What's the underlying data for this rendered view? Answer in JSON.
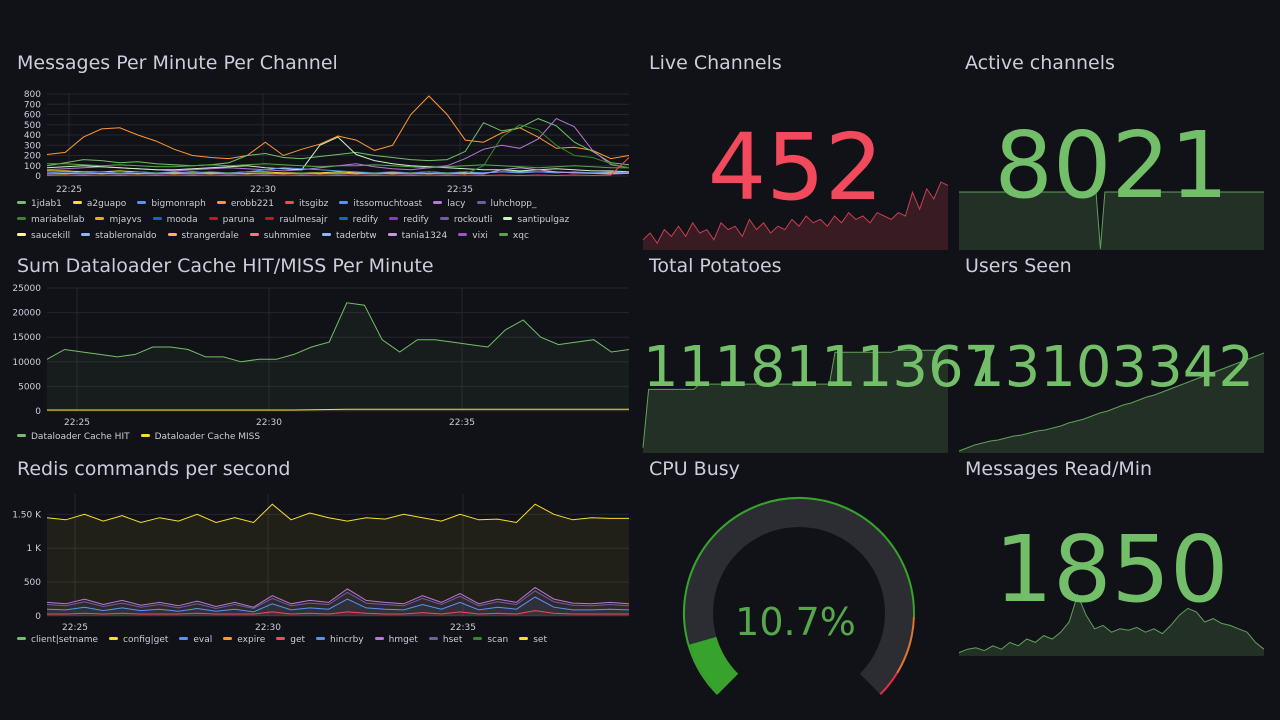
{
  "colors": {
    "background": "#111217",
    "grid": "#24262c",
    "text": "#ccccdc",
    "stat_green": "#73bf69",
    "stat_red": "#f2495c",
    "gauge_track": "#2b2d33"
  },
  "messages_panel": {
    "title": "Messages Per Minute Per Channel",
    "legend": [
      {
        "name": "1jdab1",
        "color": "#73bf69"
      },
      {
        "name": "a2guapo",
        "color": "#fade2a"
      },
      {
        "name": "bigmonraph",
        "color": "#5794f2"
      },
      {
        "name": "erobb221",
        "color": "#ff9830"
      },
      {
        "name": "itsgibz",
        "color": "#f2495c"
      },
      {
        "name": "itssomuchtoast",
        "color": "#5794f2"
      },
      {
        "name": "lacy",
        "color": "#b877d9"
      },
      {
        "name": "luhchopp_",
        "color": "#705da0"
      },
      {
        "name": "mariabellab",
        "color": "#37872d"
      },
      {
        "name": "mjayvs",
        "color": "#e0b400"
      },
      {
        "name": "mooda",
        "color": "#1f60c4"
      },
      {
        "name": "paruna",
        "color": "#c4162a"
      },
      {
        "name": "raulmesajr",
        "color": "#c4162a"
      },
      {
        "name": "redify",
        "color": "#1f60c4"
      },
      {
        "name": "redify",
        "color": "#8f3bb8"
      },
      {
        "name": "rockoutli",
        "color": "#705da0"
      },
      {
        "name": "santipulgaz",
        "color": "#c8f2c2"
      },
      {
        "name": "saucekill",
        "color": "#fff899"
      },
      {
        "name": "stableronaldo",
        "color": "#8ab8ff"
      },
      {
        "name": "strangerdale",
        "color": "#ffb357"
      },
      {
        "name": "suhmmiee",
        "color": "#ff7383"
      },
      {
        "name": "taderbtw",
        "color": "#8ab8ff"
      },
      {
        "name": "tania1324",
        "color": "#ca95e5"
      },
      {
        "name": "vixi",
        "color": "#a352cc"
      },
      {
        "name": "xqc",
        "color": "#56a64b"
      }
    ],
    "chart_data": {
      "type": "line",
      "yticks": [
        "800",
        "700",
        "600",
        "500",
        "400",
        "300",
        "200",
        "100",
        "0"
      ],
      "xticks": [
        "22:25",
        "22:30",
        "22:35"
      ],
      "ylim": [
        0,
        800
      ],
      "series": [
        {
          "name": "erobb221",
          "color": "#ff9830",
          "values": [
            210,
            230,
            380,
            460,
            470,
            400,
            340,
            260,
            200,
            180,
            170,
            200,
            330,
            200,
            260,
            310,
            390,
            350,
            250,
            300,
            600,
            780,
            600,
            350,
            330,
            420,
            470,
            380,
            270,
            280,
            250,
            170,
            200
          ]
        },
        {
          "name": "1jdab1",
          "color": "#73bf69",
          "values": [
            100,
            130,
            160,
            150,
            130,
            140,
            120,
            110,
            100,
            110,
            130,
            200,
            220,
            180,
            170,
            190,
            210,
            230,
            200,
            180,
            160,
            150,
            160,
            240,
            520,
            440,
            470,
            560,
            490,
            330,
            240,
            130,
            110
          ]
        },
        {
          "name": "lacy",
          "color": "#b877d9",
          "values": [
            60,
            70,
            80,
            90,
            80,
            70,
            60,
            50,
            60,
            70,
            80,
            70,
            60,
            50,
            60,
            80,
            100,
            120,
            90,
            70,
            60,
            80,
            100,
            170,
            260,
            300,
            270,
            360,
            560,
            480,
            250,
            110,
            80
          ]
        },
        {
          "name": "santipulgaz",
          "color": "#c8f2c2",
          "values": [
            80,
            90,
            100,
            90,
            80,
            70,
            60,
            60,
            70,
            80,
            90,
            100,
            80,
            70,
            60,
            300,
            380,
            210,
            150,
            120,
            100,
            90,
            80,
            70,
            60,
            60,
            50,
            60,
            70,
            60,
            50,
            50,
            40
          ]
        },
        {
          "name": "xqc",
          "color": "#56a64b",
          "values": [
            120,
            120,
            110,
            100,
            110,
            100,
            90,
            90,
            100,
            110,
            100,
            110,
            120,
            110,
            100,
            90,
            100,
            100,
            110,
            100,
            90,
            80,
            90,
            100,
            110,
            100,
            90,
            80,
            90,
            100,
            90,
            80,
            80
          ]
        },
        {
          "name": "a2guapo",
          "color": "#fade2a",
          "values": [
            50,
            50,
            40,
            40,
            50,
            40,
            30,
            30,
            40,
            30,
            30,
            40,
            40,
            30,
            30,
            30,
            40,
            30,
            30,
            30,
            30,
            40,
            30,
            30,
            30,
            40,
            40,
            40,
            40,
            30,
            30,
            30,
            30
          ]
        },
        {
          "name": "bigmonraph",
          "color": "#5794f2",
          "values": [
            30,
            40,
            30,
            40,
            30,
            40,
            30,
            40,
            30,
            40,
            30,
            40,
            60,
            80,
            70,
            60,
            50,
            40,
            30,
            40,
            30,
            40,
            30,
            40,
            30,
            40,
            30,
            40,
            30,
            40,
            30,
            40,
            30
          ]
        },
        {
          "name": "mariabellab",
          "color": "#37872d",
          "values": [
            20,
            20,
            30,
            20,
            30,
            20,
            30,
            20,
            30,
            20,
            30,
            20,
            30,
            20,
            30,
            20,
            30,
            20,
            30,
            20,
            30,
            20,
            30,
            20,
            100,
            380,
            500,
            450,
            300,
            200,
            180,
            120,
            80
          ]
        },
        {
          "name": "tania1324",
          "color": "#ca95e5",
          "values": [
            20,
            25,
            20,
            25,
            20,
            25,
            20,
            25,
            20,
            25,
            20,
            25,
            20,
            25,
            20,
            25,
            20,
            25,
            20,
            25,
            20,
            25,
            20,
            25,
            20,
            60,
            80,
            60,
            40,
            30,
            25,
            20,
            25
          ]
        },
        {
          "name": "itsgibz",
          "color": "#f2495c",
          "values": [
            5,
            10,
            5,
            10,
            5,
            10,
            5,
            10,
            5,
            10,
            5,
            10,
            5,
            10,
            5,
            10,
            5,
            10,
            5,
            10,
            5,
            10,
            5,
            10,
            5,
            10,
            5,
            10,
            5,
            10,
            5,
            10,
            180
          ]
        }
      ]
    }
  },
  "dataloader_panel": {
    "title": "Sum Dataloader Cache HIT/MISS Per Minute",
    "legend": [
      {
        "name": "Dataloader Cache HIT",
        "color": "#73bf69"
      },
      {
        "name": "Dataloader Cache MISS",
        "color": "#fade2a"
      }
    ],
    "chart_data": {
      "type": "area",
      "yticks": [
        "25000",
        "20000",
        "15000",
        "10000",
        "5000",
        "0"
      ],
      "xticks": [
        "22:25",
        "22:30",
        "22:35"
      ],
      "ylim": [
        0,
        25000
      ],
      "series": [
        {
          "name": "Dataloader Cache HIT",
          "color": "#73bf69",
          "values": [
            10500,
            12500,
            12000,
            11500,
            11000,
            11500,
            13000,
            13000,
            12500,
            11000,
            11000,
            10000,
            10500,
            10500,
            11500,
            13000,
            14000,
            22000,
            21500,
            14500,
            12000,
            14500,
            14500,
            14000,
            13500,
            13000,
            16500,
            18500,
            15000,
            13500,
            14000,
            14500,
            12000,
            12500
          ]
        },
        {
          "name": "Dataloader Cache MISS",
          "color": "#fade2a",
          "values": [
            200,
            200,
            200,
            200,
            200,
            200,
            200,
            200,
            200,
            200,
            200,
            200,
            200,
            200,
            200,
            250,
            300,
            350,
            350,
            350,
            350,
            350,
            350,
            350,
            350,
            350,
            350,
            350,
            350,
            350,
            350,
            350,
            350,
            350
          ]
        }
      ]
    }
  },
  "redis_panel": {
    "title": "Redis commands per second",
    "legend": [
      {
        "name": "client|setname",
        "color": "#73bf69"
      },
      {
        "name": "config|get",
        "color": "#fade2a"
      },
      {
        "name": "eval",
        "color": "#5794f2"
      },
      {
        "name": "expire",
        "color": "#ff9830"
      },
      {
        "name": "get",
        "color": "#f2495c"
      },
      {
        "name": "hincrby",
        "color": "#5794f2"
      },
      {
        "name": "hmget",
        "color": "#b877d9"
      },
      {
        "name": "hset",
        "color": "#705da0"
      },
      {
        "name": "scan",
        "color": "#37872d"
      },
      {
        "name": "set",
        "color": "#fade2a"
      }
    ],
    "chart_data": {
      "type": "area",
      "yticks": [
        "1.50 K",
        "1 K",
        "500",
        "0"
      ],
      "xticks": [
        "22:25",
        "22:30",
        "22:35"
      ],
      "ylim": [
        0,
        1800
      ],
      "series": [
        {
          "name": "config|get",
          "color": "#fade2a",
          "values": [
            1450,
            1420,
            1500,
            1400,
            1480,
            1380,
            1450,
            1400,
            1500,
            1380,
            1450,
            1380,
            1650,
            1420,
            1520,
            1450,
            1400,
            1450,
            1430,
            1500,
            1450,
            1400,
            1500,
            1420,
            1430,
            1380,
            1650,
            1500,
            1420,
            1450,
            1440,
            1440
          ]
        },
        {
          "name": "hmget",
          "color": "#b877d9",
          "values": [
            200,
            180,
            250,
            170,
            230,
            160,
            200,
            150,
            220,
            140,
            200,
            130,
            300,
            180,
            230,
            200,
            400,
            230,
            200,
            180,
            300,
            200,
            330,
            180,
            250,
            200,
            420,
            250,
            190,
            180,
            200,
            180
          ]
        },
        {
          "name": "hset",
          "color": "#705da0",
          "values": [
            170,
            150,
            210,
            140,
            190,
            130,
            170,
            120,
            180,
            110,
            170,
            110,
            260,
            150,
            190,
            170,
            350,
            190,
            170,
            150,
            260,
            170,
            290,
            150,
            210,
            170,
            370,
            210,
            160,
            150,
            170,
            150
          ]
        },
        {
          "name": "eval",
          "color": "#5794f2",
          "values": [
            100,
            90,
            130,
            80,
            120,
            80,
            100,
            70,
            110,
            70,
            100,
            60,
            180,
            90,
            120,
            100,
            250,
            120,
            100,
            90,
            170,
            100,
            200,
            90,
            130,
            100,
            280,
            130,
            90,
            90,
            100,
            90
          ]
        },
        {
          "name": "get",
          "color": "#f2495c",
          "values": [
            30,
            30,
            40,
            30,
            40,
            30,
            30,
            30,
            40,
            30,
            30,
            30,
            60,
            30,
            40,
            30,
            60,
            40,
            30,
            30,
            50,
            30,
            60,
            30,
            40,
            30,
            80,
            40,
            30,
            30,
            30,
            30
          ]
        }
      ]
    }
  },
  "live_channels": {
    "title": "Live Channels",
    "value": "452",
    "spark": [
      0.15,
      0.25,
      0.1,
      0.3,
      0.2,
      0.35,
      0.2,
      0.4,
      0.25,
      0.3,
      0.15,
      0.4,
      0.3,
      0.35,
      0.2,
      0.45,
      0.3,
      0.4,
      0.25,
      0.35,
      0.3,
      0.45,
      0.35,
      0.5,
      0.4,
      0.45,
      0.35,
      0.5,
      0.4,
      0.55,
      0.45,
      0.5,
      0.4,
      0.55,
      0.5,
      0.45,
      0.55,
      0.5,
      0.85,
      0.6,
      0.9,
      0.75,
      1.0,
      0.95
    ]
  },
  "active_channels": {
    "title": "Active channels",
    "value": "8021",
    "spark": [
      1,
      1,
      1,
      1,
      1,
      1,
      1,
      1,
      1,
      1,
      1,
      1,
      1,
      1,
      1,
      1,
      1,
      1,
      1,
      1,
      1,
      1,
      1,
      1,
      1,
      1,
      1,
      1,
      1,
      1,
      1,
      1,
      0.02,
      1,
      1,
      1,
      1,
      1,
      1,
      1,
      1,
      1,
      1,
      1,
      1,
      1,
      1,
      1,
      1,
      1,
      1,
      1,
      1,
      1,
      1,
      1,
      1,
      1,
      1,
      1,
      1,
      1,
      1,
      1,
      1,
      1,
      1,
      1,
      1,
      1
    ]
  },
  "total_potatoes": {
    "title": "Total Potatoes",
    "value": "1118111367",
    "spark": [
      0.05,
      0.6,
      0.6,
      0.6,
      0.6,
      0.6,
      0.6,
      0.6,
      0.6,
      0.6,
      0.65,
      0.65,
      0.65,
      0.65,
      0.65,
      0.65,
      0.65,
      0.65,
      0.65,
      0.65,
      0.65,
      0.65,
      0.65,
      0.65,
      0.65,
      0.65,
      0.65,
      0.65,
      0.65,
      0.65,
      0.65,
      0.65,
      0.65,
      0.65,
      0.95,
      0.95,
      0.95,
      0.95,
      0.95,
      0.95,
      0.95,
      0.95,
      0.95,
      0.95,
      0.95,
      0.97,
      0.97,
      0.97,
      0.97,
      0.97,
      0.97,
      0.97,
      0.97,
      0.98,
      1
    ]
  },
  "users_seen": {
    "title": "Users Seen",
    "value": "13103342",
    "spark": [
      0.02,
      0.05,
      0.08,
      0.1,
      0.12,
      0.13,
      0.15,
      0.17,
      0.18,
      0.2,
      0.22,
      0.23,
      0.25,
      0.27,
      0.3,
      0.32,
      0.34,
      0.37,
      0.4,
      0.42,
      0.45,
      0.48,
      0.5,
      0.53,
      0.56,
      0.58,
      0.61,
      0.64,
      0.67,
      0.7,
      0.73,
      0.76,
      0.79,
      0.82,
      0.85,
      0.88,
      0.91,
      0.94,
      0.97,
      1
    ]
  },
  "cpu_busy": {
    "title": "CPU Busy",
    "value": "10.7%",
    "fraction": 0.107
  },
  "messages_read": {
    "title": "Messages Read/Min",
    "value": "1850",
    "spark": [
      0.05,
      0.1,
      0.12,
      0.08,
      0.15,
      0.1,
      0.2,
      0.15,
      0.25,
      0.2,
      0.3,
      0.25,
      0.35,
      0.5,
      0.9,
      0.6,
      0.4,
      0.45,
      0.35,
      0.4,
      0.38,
      0.42,
      0.35,
      0.4,
      0.33,
      0.45,
      0.6,
      0.7,
      0.65,
      0.5,
      0.55,
      0.48,
      0.45,
      0.4,
      0.35,
      0.2,
      0.1
    ]
  }
}
